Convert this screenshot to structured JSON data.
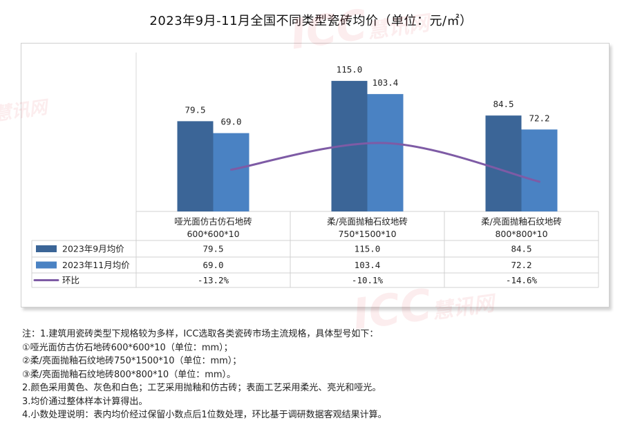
{
  "title": "2023年9月-11月全国不同类型瓷砖均价（单位：元/㎡）",
  "watermark": {
    "brand": "ICC",
    "cn": "慧讯网"
  },
  "chart_data": {
    "type": "bar",
    "categories": [
      {
        "line1": "哑光面仿古仿石地砖",
        "line2": "600*600*10"
      },
      {
        "line1": "柔/亮面抛釉石纹地砖",
        "line2": "750*1500*10"
      },
      {
        "line1": "柔/亮面抛釉石纹地砖",
        "line2": "800*800*10"
      }
    ],
    "series": [
      {
        "name": "2023年9月均价",
        "type": "bar",
        "color": "#3b6597",
        "values": [
          79.5,
          115.0,
          84.5
        ],
        "labels": [
          "79.5",
          "115.0",
          "84.5"
        ]
      },
      {
        "name": "2023年11月均价",
        "type": "bar",
        "color": "#4a82c3",
        "values": [
          69.0,
          103.4,
          72.2
        ],
        "labels": [
          "69.0",
          "103.4",
          "72.2"
        ]
      },
      {
        "name": "环比",
        "type": "line",
        "color": "#7e5ba5",
        "values": [
          -13.2,
          -10.1,
          -14.6
        ],
        "labels": [
          "-13.2%",
          "-10.1%",
          "-14.6%"
        ]
      }
    ],
    "ylim": [
      0,
      140
    ],
    "grid": false,
    "legend": "data-table"
  },
  "notes": [
    "注：1.建筑用瓷砖类型下规格较为多样，ICC选取各类瓷砖市场主流规格，具体型号如下：",
    "①哑光面仿古仿石地砖600*600*10（单位：mm）；",
    "②柔/亮面抛釉石纹地砖750*1500*10（单位：mm）；",
    "③柔/亮面抛釉石纹地砖800*800*10（单位：mm）。",
    "2.颜色采用黄色、灰色和白色；工艺采用抛釉和仿古砖；表面工艺采用柔光、亮光和哑光。",
    "3.均价通过整体样本计算得出。",
    "4.小数处理说明：表内均价经过保留小数点后1位数处理，环比基于调研数据客观结果计算。"
  ]
}
